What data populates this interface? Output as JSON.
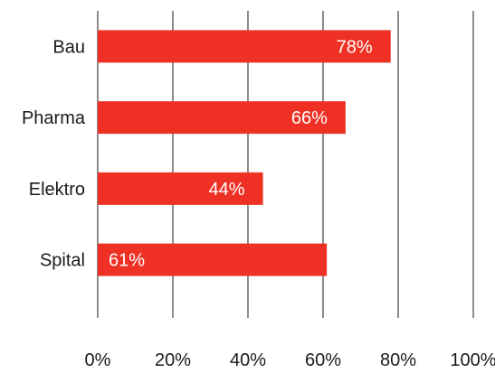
{
  "chart_data": {
    "type": "bar",
    "orientation": "horizontal",
    "categories": [
      "Bau",
      "Pharma",
      "Elektro",
      "Spital"
    ],
    "values": [
      78,
      66,
      44,
      61
    ],
    "value_labels": [
      "78%",
      "66%",
      "44%",
      "61%"
    ],
    "x_ticks": [
      "0%",
      "20%",
      "40%",
      "60%",
      "80%",
      "100%"
    ],
    "xlim": [
      0,
      100
    ],
    "grid": true,
    "bar_color": "#ee3124",
    "axis_color": "#1a1a1a"
  }
}
